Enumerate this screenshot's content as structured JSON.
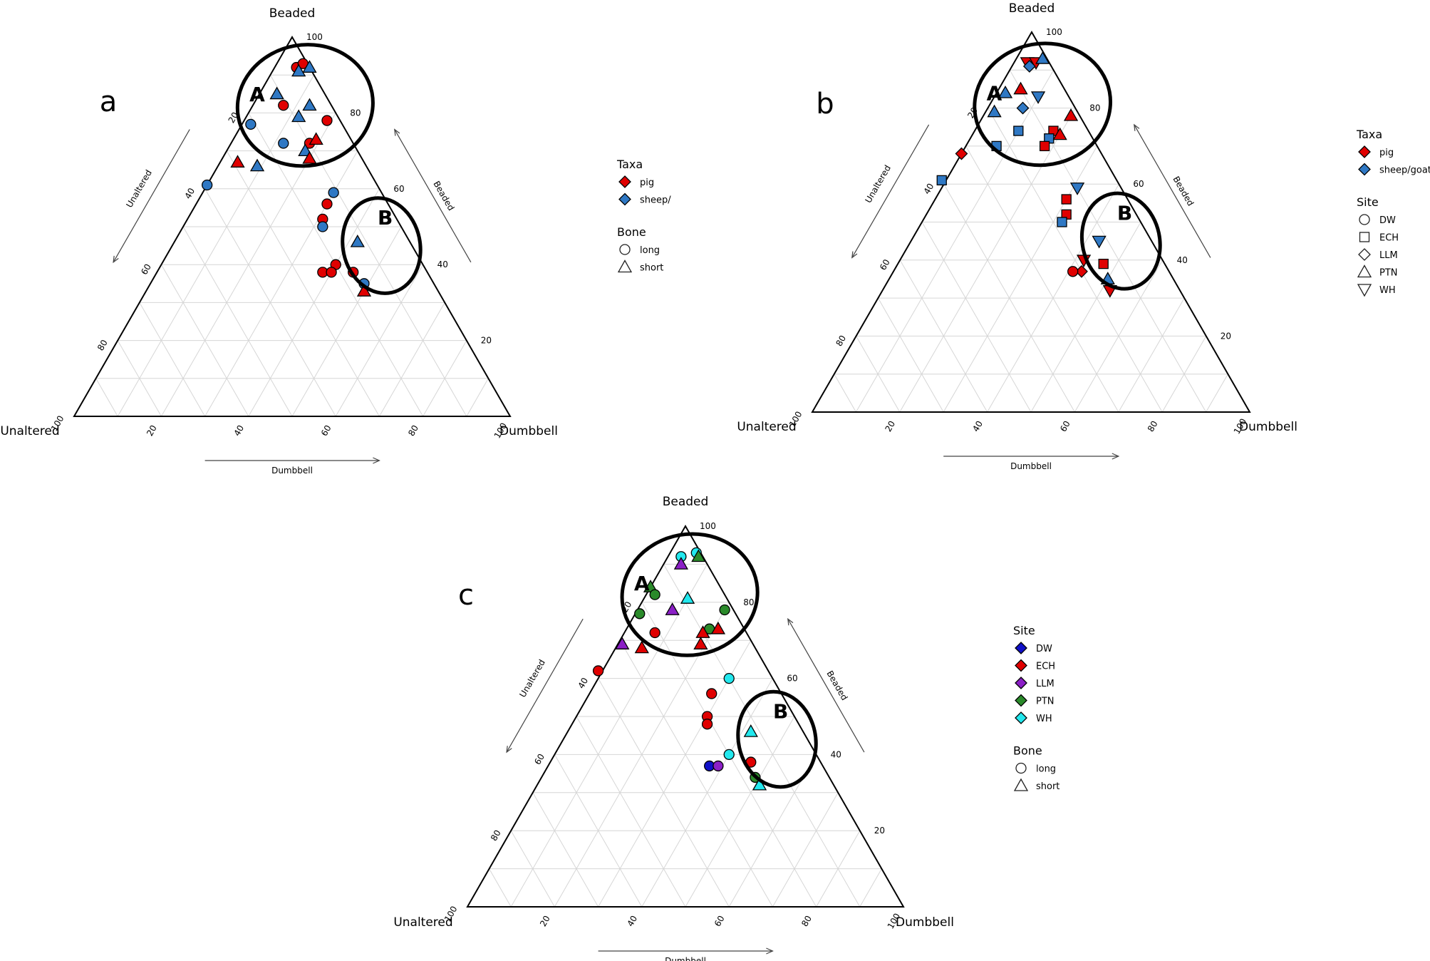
{
  "chart_data": [
    {
      "type": "scatter",
      "subtype": "ternary",
      "panel_label": "a",
      "vertices": {
        "top": "Beaded",
        "left": "Unaltered",
        "right": "Dumbbell"
      },
      "axes": {
        "left": {
          "label": "Unaltered",
          "ticks": [
            "20",
            "40",
            "60",
            "80",
            "100"
          ]
        },
        "right": {
          "label": "Beaded",
          "ticks": [
            "100",
            "80",
            "60",
            "40",
            "20"
          ]
        },
        "bottom": {
          "label": "Dumbbell",
          "ticks": [
            "20",
            "40",
            "60",
            "80",
            "100"
          ]
        }
      },
      "clusters": [
        {
          "label": "A",
          "center": {
            "beaded": 82,
            "dumbbell": 12
          },
          "scale": [
            14,
            19
          ]
        },
        {
          "label": "B",
          "center": {
            "beaded": 45,
            "dumbbell": 48
          },
          "scale": [
            8,
            17
          ]
        }
      ],
      "legend": [
        {
          "title": "Taxa",
          "entries": [
            {
              "label": "pig",
              "symbol": "diamond",
              "color": "#e00000"
            },
            {
              "label": "sheep/",
              "symbol": "diamond",
              "color": "#2f78c4"
            }
          ]
        },
        {
          "title": "Bone",
          "entries": [
            {
              "label": "long",
              "symbol": "circle"
            },
            {
              "label": "short",
              "symbol": "triangle"
            }
          ]
        }
      ],
      "points": [
        {
          "beaded": 92,
          "dumbbell": 5,
          "shape": "circle",
          "color": "#e00000"
        },
        {
          "beaded": 93,
          "dumbbell": 6,
          "shape": "circle",
          "color": "#e00000"
        },
        {
          "beaded": 91,
          "dumbbell": 6,
          "shape": "triangle",
          "color": "#2f78c4"
        },
        {
          "beaded": 92,
          "dumbbell": 8,
          "shape": "triangle",
          "color": "#2f78c4"
        },
        {
          "beaded": 85,
          "dumbbell": 4,
          "shape": "triangle",
          "color": "#2f78c4"
        },
        {
          "beaded": 82,
          "dumbbell": 7,
          "shape": "circle",
          "color": "#e00000"
        },
        {
          "beaded": 82,
          "dumbbell": 13,
          "shape": "triangle",
          "color": "#2f78c4"
        },
        {
          "beaded": 79,
          "dumbbell": 12,
          "shape": "triangle",
          "color": "#2f78c4"
        },
        {
          "beaded": 77,
          "dumbbell": 2,
          "shape": "circle",
          "color": "#2f78c4"
        },
        {
          "beaded": 78,
          "dumbbell": 19,
          "shape": "circle",
          "color": "#e00000"
        },
        {
          "beaded": 72,
          "dumbbell": 12,
          "shape": "circle",
          "color": "#2f78c4"
        },
        {
          "beaded": 72,
          "dumbbell": 18,
          "shape": "circle",
          "color": "#e00000"
        },
        {
          "beaded": 73,
          "dumbbell": 19,
          "shape": "triangle",
          "color": "#e00000"
        },
        {
          "beaded": 70,
          "dumbbell": 18,
          "shape": "triangle",
          "color": "#2f78c4"
        },
        {
          "beaded": 68,
          "dumbbell": 20,
          "shape": "triangle",
          "color": "#e00000"
        },
        {
          "beaded": 67,
          "dumbbell": 4,
          "shape": "triangle",
          "color": "#e00000"
        },
        {
          "beaded": 66,
          "dumbbell": 9,
          "shape": "triangle",
          "color": "#2f78c4"
        },
        {
          "beaded": 61,
          "dumbbell": 0,
          "shape": "circle",
          "color": "#2f78c4"
        },
        {
          "beaded": 59,
          "dumbbell": 30,
          "shape": "circle",
          "color": "#2f78c4"
        },
        {
          "beaded": 56,
          "dumbbell": 30,
          "shape": "circle",
          "color": "#e00000"
        },
        {
          "beaded": 52,
          "dumbbell": 31,
          "shape": "circle",
          "color": "#e00000"
        },
        {
          "beaded": 50,
          "dumbbell": 32,
          "shape": "circle",
          "color": "#2f78c4"
        },
        {
          "beaded": 46,
          "dumbbell": 42,
          "shape": "triangle",
          "color": "#2f78c4"
        },
        {
          "beaded": 40,
          "dumbbell": 40,
          "shape": "circle",
          "color": "#e00000"
        },
        {
          "beaded": 38,
          "dumbbell": 38,
          "shape": "circle",
          "color": "#e00000"
        },
        {
          "beaded": 38,
          "dumbbell": 40,
          "shape": "circle",
          "color": "#e00000"
        },
        {
          "beaded": 38,
          "dumbbell": 45,
          "shape": "circle",
          "color": "#e00000"
        },
        {
          "beaded": 35,
          "dumbbell": 49,
          "shape": "circle",
          "color": "#2f78c4"
        },
        {
          "beaded": 33,
          "dumbbell": 50,
          "shape": "triangle",
          "color": "#e00000"
        }
      ]
    },
    {
      "type": "scatter",
      "subtype": "ternary",
      "panel_label": "b",
      "vertices": {
        "top": "Beaded",
        "left": "Unaltered",
        "right": "Dumbbell"
      },
      "axes": {
        "left": {
          "label": "Unaltered",
          "ticks": [
            "20",
            "40",
            "60",
            "80",
            "100"
          ]
        },
        "right": {
          "label": "Beaded",
          "ticks": [
            "100",
            "80",
            "60",
            "40",
            "20"
          ]
        },
        "bottom": {
          "label": "Dumbbell",
          "ticks": [
            "20",
            "40",
            "60",
            "80",
            "100"
          ]
        }
      },
      "clusters": [
        {
          "label": "A",
          "center": {
            "beaded": 81,
            "dumbbell": 12
          },
          "scale": [
            14,
            19
          ]
        },
        {
          "label": "B",
          "center": {
            "beaded": 45,
            "dumbbell": 48
          },
          "scale": [
            8,
            17
          ]
        }
      ],
      "legend": [
        {
          "title": "Taxa",
          "entries": [
            {
              "label": "pig",
              "symbol": "diamond",
              "color": "#e00000"
            },
            {
              "label": "sheep/goat",
              "symbol": "diamond",
              "color": "#2f78c4"
            }
          ]
        },
        {
          "title": "Site",
          "entries": [
            {
              "label": "DW",
              "symbol": "circle"
            },
            {
              "label": "ECH",
              "symbol": "square"
            },
            {
              "label": "LLM",
              "symbol": "diamond"
            },
            {
              "label": "PTN",
              "symbol": "triangle"
            },
            {
              "label": "WH",
              "symbol": "triangle-down"
            }
          ]
        }
      ],
      "points": [
        {
          "beaded": 92,
          "dumbbell": 3,
          "shape": "triangle-down",
          "color": "#e00000"
        },
        {
          "beaded": 92,
          "dumbbell": 5,
          "shape": "triangle-down",
          "color": "#e00000"
        },
        {
          "beaded": 91,
          "dumbbell": 4,
          "shape": "diamond",
          "color": "#2f78c4"
        },
        {
          "beaded": 93,
          "dumbbell": 6,
          "shape": "triangle",
          "color": "#2f78c4"
        },
        {
          "beaded": 85,
          "dumbbell": 5,
          "shape": "triangle",
          "color": "#e00000"
        },
        {
          "beaded": 84,
          "dumbbell": 2,
          "shape": "triangle",
          "color": "#2f78c4"
        },
        {
          "beaded": 83,
          "dumbbell": 10,
          "shape": "triangle-down",
          "color": "#2f78c4"
        },
        {
          "beaded": 80,
          "dumbbell": 8,
          "shape": "diamond",
          "color": "#2f78c4"
        },
        {
          "beaded": 79,
          "dumbbell": 2,
          "shape": "triangle",
          "color": "#2f78c4"
        },
        {
          "beaded": 78,
          "dumbbell": 20,
          "shape": "triangle",
          "color": "#e00000"
        },
        {
          "beaded": 74,
          "dumbbell": 10,
          "shape": "square",
          "color": "#2f78c4"
        },
        {
          "beaded": 74,
          "dumbbell": 18,
          "shape": "square",
          "color": "#e00000"
        },
        {
          "beaded": 72,
          "dumbbell": 18,
          "shape": "square",
          "color": "#2f78c4"
        },
        {
          "beaded": 73,
          "dumbbell": 20,
          "shape": "triangle",
          "color": "#e00000"
        },
        {
          "beaded": 70,
          "dumbbell": 18,
          "shape": "square",
          "color": "#e00000"
        },
        {
          "beaded": 70,
          "dumbbell": 7,
          "shape": "square",
          "color": "#2f78c4"
        },
        {
          "beaded": 68,
          "dumbbell": 0,
          "shape": "diamond",
          "color": "#e00000"
        },
        {
          "beaded": 61,
          "dumbbell": -1,
          "shape": "square",
          "color": "#2f78c4"
        },
        {
          "beaded": 59,
          "dumbbell": 31,
          "shape": "triangle-down",
          "color": "#2f78c4"
        },
        {
          "beaded": 56,
          "dumbbell": 30,
          "shape": "square",
          "color": "#e00000"
        },
        {
          "beaded": 52,
          "dumbbell": 32,
          "shape": "square",
          "color": "#e00000"
        },
        {
          "beaded": 50,
          "dumbbell": 32,
          "shape": "square",
          "color": "#2f78c4"
        },
        {
          "beaded": 45,
          "dumbbell": 43,
          "shape": "triangle-down",
          "color": "#2f78c4"
        },
        {
          "beaded": 40,
          "dumbbell": 42,
          "shape": "triangle-down",
          "color": "#e00000"
        },
        {
          "beaded": 39,
          "dumbbell": 47,
          "shape": "square",
          "color": "#e00000"
        },
        {
          "beaded": 37,
          "dumbbell": 43,
          "shape": "diamond",
          "color": "#e00000"
        },
        {
          "beaded": 37,
          "dumbbell": 41,
          "shape": "circle",
          "color": "#e00000"
        },
        {
          "beaded": 35,
          "dumbbell": 50,
          "shape": "triangle",
          "color": "#2f78c4"
        },
        {
          "beaded": 32,
          "dumbbell": 52,
          "shape": "triangle-down",
          "color": "#e00000"
        }
      ]
    },
    {
      "type": "scatter",
      "subtype": "ternary",
      "panel_label": "c",
      "vertices": {
        "top": "Beaded",
        "left": "Unaltered",
        "right": "Dumbbell"
      },
      "axes": {
        "left": {
          "label": "Unaltered",
          "ticks": [
            "20",
            "40",
            "60",
            "80",
            "100"
          ]
        },
        "right": {
          "label": "Beaded",
          "ticks": [
            "100",
            "80",
            "60",
            "40",
            "20"
          ]
        },
        "bottom": {
          "label": "Dumbbell",
          "ticks": [
            "20",
            "40",
            "60",
            "80",
            "100"
          ]
        }
      },
      "clusters": [
        {
          "label": "A",
          "center": {
            "beaded": 82,
            "dumbbell": 10
          },
          "scale": [
            14,
            19
          ]
        },
        {
          "label": "B",
          "center": {
            "beaded": 44,
            "dumbbell": 49
          },
          "scale": [
            8,
            17
          ]
        }
      ],
      "legend": [
        {
          "title": "Site",
          "entries": [
            {
              "label": "DW",
              "symbol": "diamond",
              "color": "#1010c8"
            },
            {
              "label": "ECH",
              "symbol": "diamond",
              "color": "#e00000"
            },
            {
              "label": "LLM",
              "symbol": "diamond",
              "color": "#8b1fc6"
            },
            {
              "label": "PTN",
              "symbol": "diamond",
              "color": "#2a8a2a"
            },
            {
              "label": "WH",
              "symbol": "diamond",
              "color": "#22e8ee"
            }
          ]
        },
        {
          "title": "Bone",
          "entries": [
            {
              "label": "long",
              "symbol": "circle"
            },
            {
              "label": "short",
              "symbol": "triangle"
            }
          ]
        }
      ],
      "points": [
        {
          "beaded": 92,
          "dumbbell": 3,
          "shape": "circle",
          "color": "#22e8ee"
        },
        {
          "beaded": 93,
          "dumbbell": 6,
          "shape": "circle",
          "color": "#22e8ee"
        },
        {
          "beaded": 92,
          "dumbbell": 7,
          "shape": "triangle",
          "color": "#2a8a2a"
        },
        {
          "beaded": 90,
          "dumbbell": 4,
          "shape": "triangle",
          "color": "#8b1fc6"
        },
        {
          "beaded": 84,
          "dumbbell": 0,
          "shape": "triangle",
          "color": "#2a8a2a"
        },
        {
          "beaded": 82,
          "dumbbell": 2,
          "shape": "circle",
          "color": "#2a8a2a"
        },
        {
          "beaded": 81,
          "dumbbell": 10,
          "shape": "triangle",
          "color": "#22e8ee"
        },
        {
          "beaded": 77,
          "dumbbell": 1,
          "shape": "circle",
          "color": "#2a8a2a"
        },
        {
          "beaded": 78,
          "dumbbell": 8,
          "shape": "triangle",
          "color": "#8b1fc6"
        },
        {
          "beaded": 78,
          "dumbbell": 20,
          "shape": "circle",
          "color": "#2a8a2a"
        },
        {
          "beaded": 73,
          "dumbbell": 19,
          "shape": "circle",
          "color": "#2a8a2a"
        },
        {
          "beaded": 72,
          "dumbbell": 18,
          "shape": "triangle",
          "color": "#e00000"
        },
        {
          "beaded": 73,
          "dumbbell": 21,
          "shape": "triangle",
          "color": "#e00000"
        },
        {
          "beaded": 72,
          "dumbbell": 7,
          "shape": "circle",
          "color": "#e00000"
        },
        {
          "beaded": 69,
          "dumbbell": 19,
          "shape": "triangle",
          "color": "#e00000"
        },
        {
          "beaded": 69,
          "dumbbell": 1,
          "shape": "triangle",
          "color": "#8b1fc6"
        },
        {
          "beaded": 68,
          "dumbbell": 6,
          "shape": "triangle",
          "color": "#e00000"
        },
        {
          "beaded": 62,
          "dumbbell": -1,
          "shape": "circle",
          "color": "#e00000"
        },
        {
          "beaded": 60,
          "dumbbell": 30,
          "shape": "circle",
          "color": "#22e8ee"
        },
        {
          "beaded": 56,
          "dumbbell": 28,
          "shape": "circle",
          "color": "#e00000"
        },
        {
          "beaded": 50,
          "dumbbell": 30,
          "shape": "circle",
          "color": "#e00000"
        },
        {
          "beaded": 48,
          "dumbbell": 31,
          "shape": "circle",
          "color": "#e00000"
        },
        {
          "beaded": 46,
          "dumbbell": 42,
          "shape": "triangle",
          "color": "#22e8ee"
        },
        {
          "beaded": 40,
          "dumbbell": 40,
          "shape": "circle",
          "color": "#22e8ee"
        },
        {
          "beaded": 38,
          "dumbbell": 46,
          "shape": "circle",
          "color": "#e00000"
        },
        {
          "beaded": 37,
          "dumbbell": 37,
          "shape": "circle",
          "color": "#1010c8"
        },
        {
          "beaded": 37,
          "dumbbell": 39,
          "shape": "circle",
          "color": "#8b1fc6"
        },
        {
          "beaded": 34,
          "dumbbell": 49,
          "shape": "circle",
          "color": "#2a8a2a"
        },
        {
          "beaded": 32,
          "dumbbell": 51,
          "shape": "triangle",
          "color": "#22e8ee"
        }
      ]
    }
  ]
}
